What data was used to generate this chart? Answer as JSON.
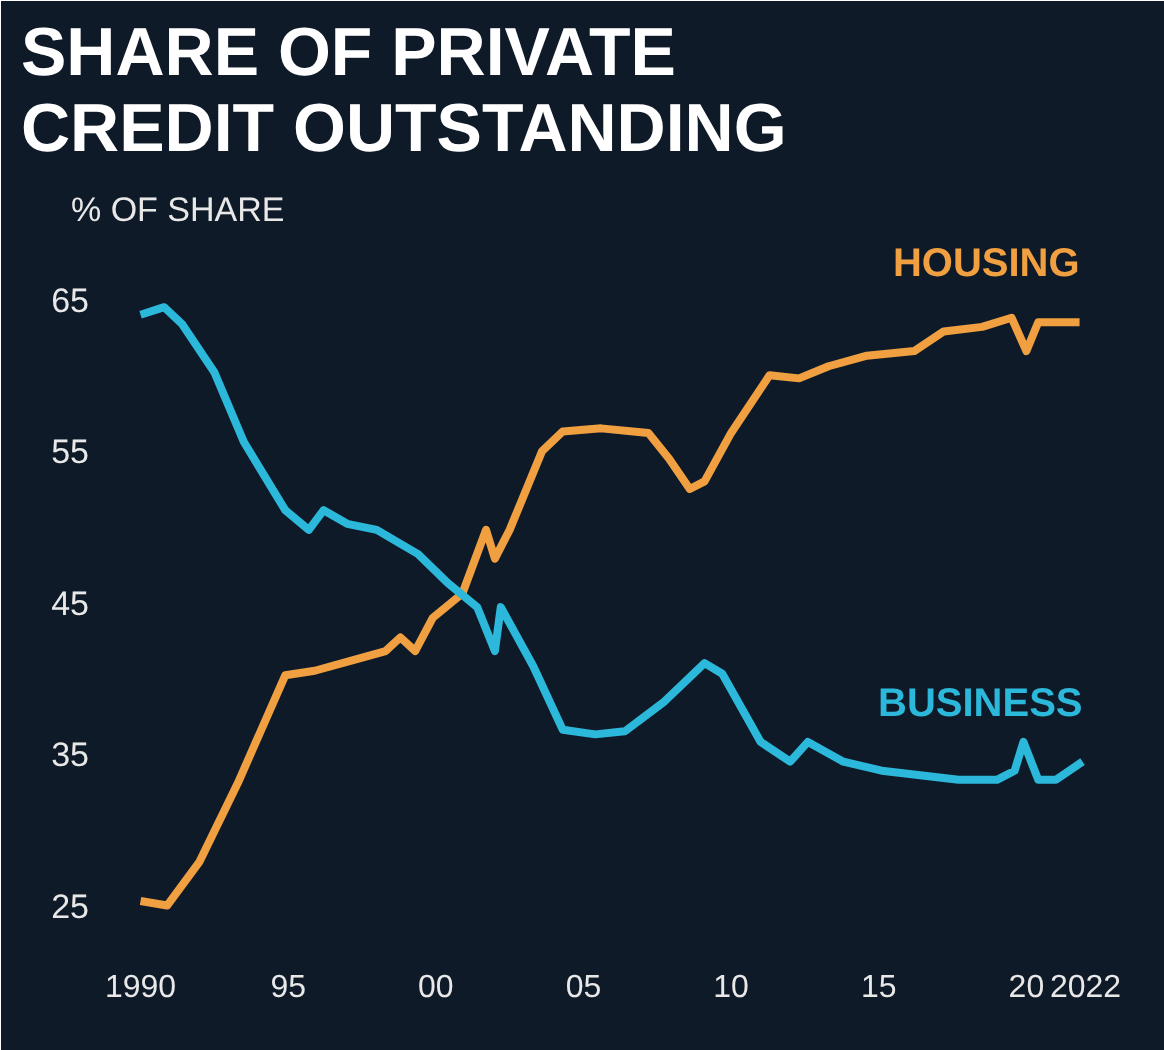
{
  "chart_data": {
    "type": "line",
    "title": "SHARE OF PRIVATE\nCREDIT OUTSTANDING",
    "ylabel": "% OF SHARE",
    "xlim": [
      1989,
      2023
    ],
    "ylim": [
      22,
      69
    ],
    "yticks": [
      25,
      35,
      45,
      55,
      65
    ],
    "xticks": [
      {
        "value": 1990,
        "label": "1990"
      },
      {
        "value": 1995,
        "label": "95"
      },
      {
        "value": 2000,
        "label": "00"
      },
      {
        "value": 2005,
        "label": "05"
      },
      {
        "value": 2010,
        "label": "10"
      },
      {
        "value": 2015,
        "label": "15"
      },
      {
        "value": 2020,
        "label": "20"
      },
      {
        "value": 2022,
        "label": "2022"
      }
    ],
    "grid": false,
    "line_style": "solid",
    "marker": "none",
    "series": [
      {
        "name": "HOUSING",
        "color": "#f0a040",
        "x": [
          1990,
          1990.9,
          1992,
          1993.3,
          1994.9,
          1995.9,
          1997.2,
          1998.3,
          1998.8,
          1999.3,
          1999.9,
          2000.9,
          2001.7,
          2002,
          2002.5,
          2003.6,
          2004.3,
          2005.6,
          2007.2,
          2007.9,
          2008.6,
          2009.1,
          2010,
          2011.3,
          2012.3,
          2013.3,
          2014.6,
          2016.2,
          2017.2,
          2018.5,
          2019.5,
          2020,
          2020.4,
          2021.8
        ],
        "values": [
          25.3,
          25,
          27.9,
          33.1,
          40.2,
          40.5,
          41.2,
          41.8,
          42.7,
          41.8,
          44,
          45.6,
          49.8,
          47.9,
          49.8,
          55,
          56.3,
          56.5,
          56.2,
          54.5,
          52.5,
          53,
          56.2,
          60,
          59.8,
          60.6,
          61.3,
          61.6,
          62.9,
          63.2,
          63.8,
          61.6,
          63.5,
          63.5
        ]
      },
      {
        "name": "BUSINESS",
        "color": "#2bb8da",
        "x": [
          1990,
          1990.8,
          1991.4,
          1992.5,
          1993.5,
          1994.9,
          1995.7,
          1996.2,
          1997,
          1998,
          1999.4,
          2000.4,
          2001.4,
          2002,
          2002.2,
          2003.3,
          2004.3,
          2005.4,
          2006.4,
          2007.7,
          2009.1,
          2009.7,
          2011,
          2012,
          2012.6,
          2013.8,
          2015.1,
          2016.4,
          2017.7,
          2019,
          2019.6,
          2019.9,
          2020.4,
          2021,
          2021.9
        ],
        "values": [
          64,
          64.5,
          63.4,
          60.2,
          55.6,
          51.1,
          49.8,
          51.1,
          50.2,
          49.8,
          48.2,
          46.3,
          44.7,
          41.8,
          44.7,
          40.8,
          36.6,
          36.3,
          36.5,
          38.4,
          41,
          40.3,
          35.8,
          34.5,
          35.8,
          34.5,
          33.9,
          33.6,
          33.3,
          33.3,
          33.9,
          35.8,
          33.3,
          33.3,
          34.5
        ]
      }
    ]
  }
}
